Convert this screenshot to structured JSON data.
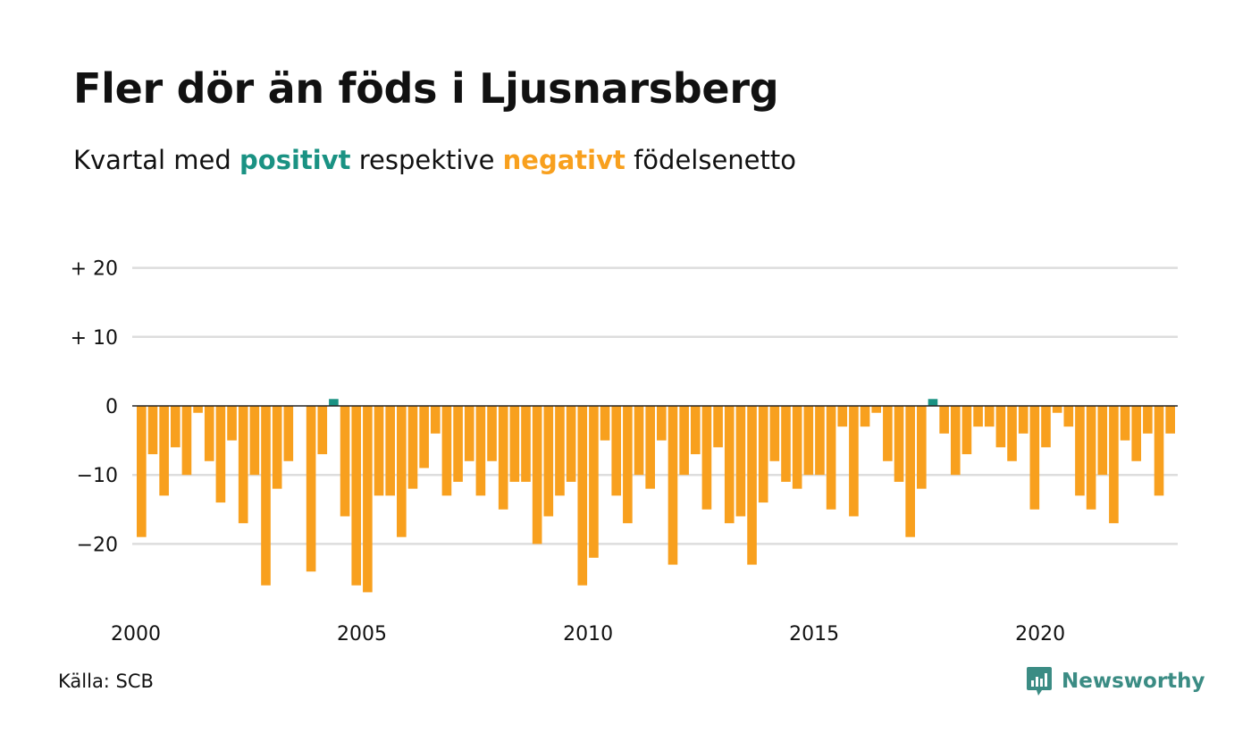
{
  "header": {
    "title": "Fler dör än föds i Ljusnarsberg",
    "subtitle_pre": "Kvartal med ",
    "subtitle_positive": "positivt",
    "subtitle_mid": " respektive ",
    "subtitle_negative": "negativt",
    "subtitle_post": " födelsenetto"
  },
  "footer": {
    "source": "Källa: SCB",
    "brand": "Newsworthy",
    "brand_icon": "newsworthy-logo-icon"
  },
  "colors": {
    "positive": "#1a9283",
    "negative": "#f8a01e",
    "grid": "#dddddd",
    "zero_line": "#222222",
    "text": "#111111",
    "brand": "#3b8c84"
  },
  "chart_data": {
    "type": "bar",
    "title": "Fler dör än föds i Ljusnarsberg",
    "subtitle": "Kvartal med positivt respektive negativt födelsenetto",
    "xlabel": "",
    "ylabel": "",
    "ylim": [
      -29,
      20
    ],
    "yticks": [
      20,
      10,
      0,
      -10,
      -20
    ],
    "ytick_labels": [
      "+ 20",
      "+ 10",
      "0",
      "−10",
      "−20"
    ],
    "xlim": [
      2000,
      2023
    ],
    "xticks": [
      2000,
      2005,
      2010,
      2015,
      2020
    ],
    "xtick_labels": [
      "2000",
      "2005",
      "2010",
      "2015",
      "2020"
    ],
    "grid": true,
    "legend": "none",
    "start_period": "2000 K1",
    "series": [
      {
        "values": [
          -19,
          -7,
          -13,
          -6,
          -10,
          -1,
          -8,
          -14,
          -5,
          -17,
          -10,
          -26,
          -12,
          -8,
          0,
          -24,
          -7,
          1,
          -16,
          -26,
          -27,
          -13,
          -13,
          -19,
          -12,
          -9,
          -4,
          -13,
          -11,
          -8,
          -13,
          -8,
          -15,
          -11,
          -11,
          -20,
          -16,
          -13,
          -11,
          -26,
          -22,
          -5,
          -13,
          -17,
          -10,
          -12,
          -5,
          -23,
          -10,
          -7,
          -15,
          -6,
          -17,
          -16,
          -23,
          -14,
          -8,
          -11,
          -12,
          -10,
          -10,
          -15,
          -3,
          -16,
          -3,
          -1,
          -8,
          -11,
          -19,
          -12,
          1,
          -4,
          -10,
          -7,
          -3,
          -3,
          -6,
          -8,
          -4,
          -15,
          -6,
          -1,
          -3,
          -13,
          -15,
          -10,
          -17,
          -5,
          -8,
          -4,
          -13,
          -4
        ]
      }
    ]
  }
}
